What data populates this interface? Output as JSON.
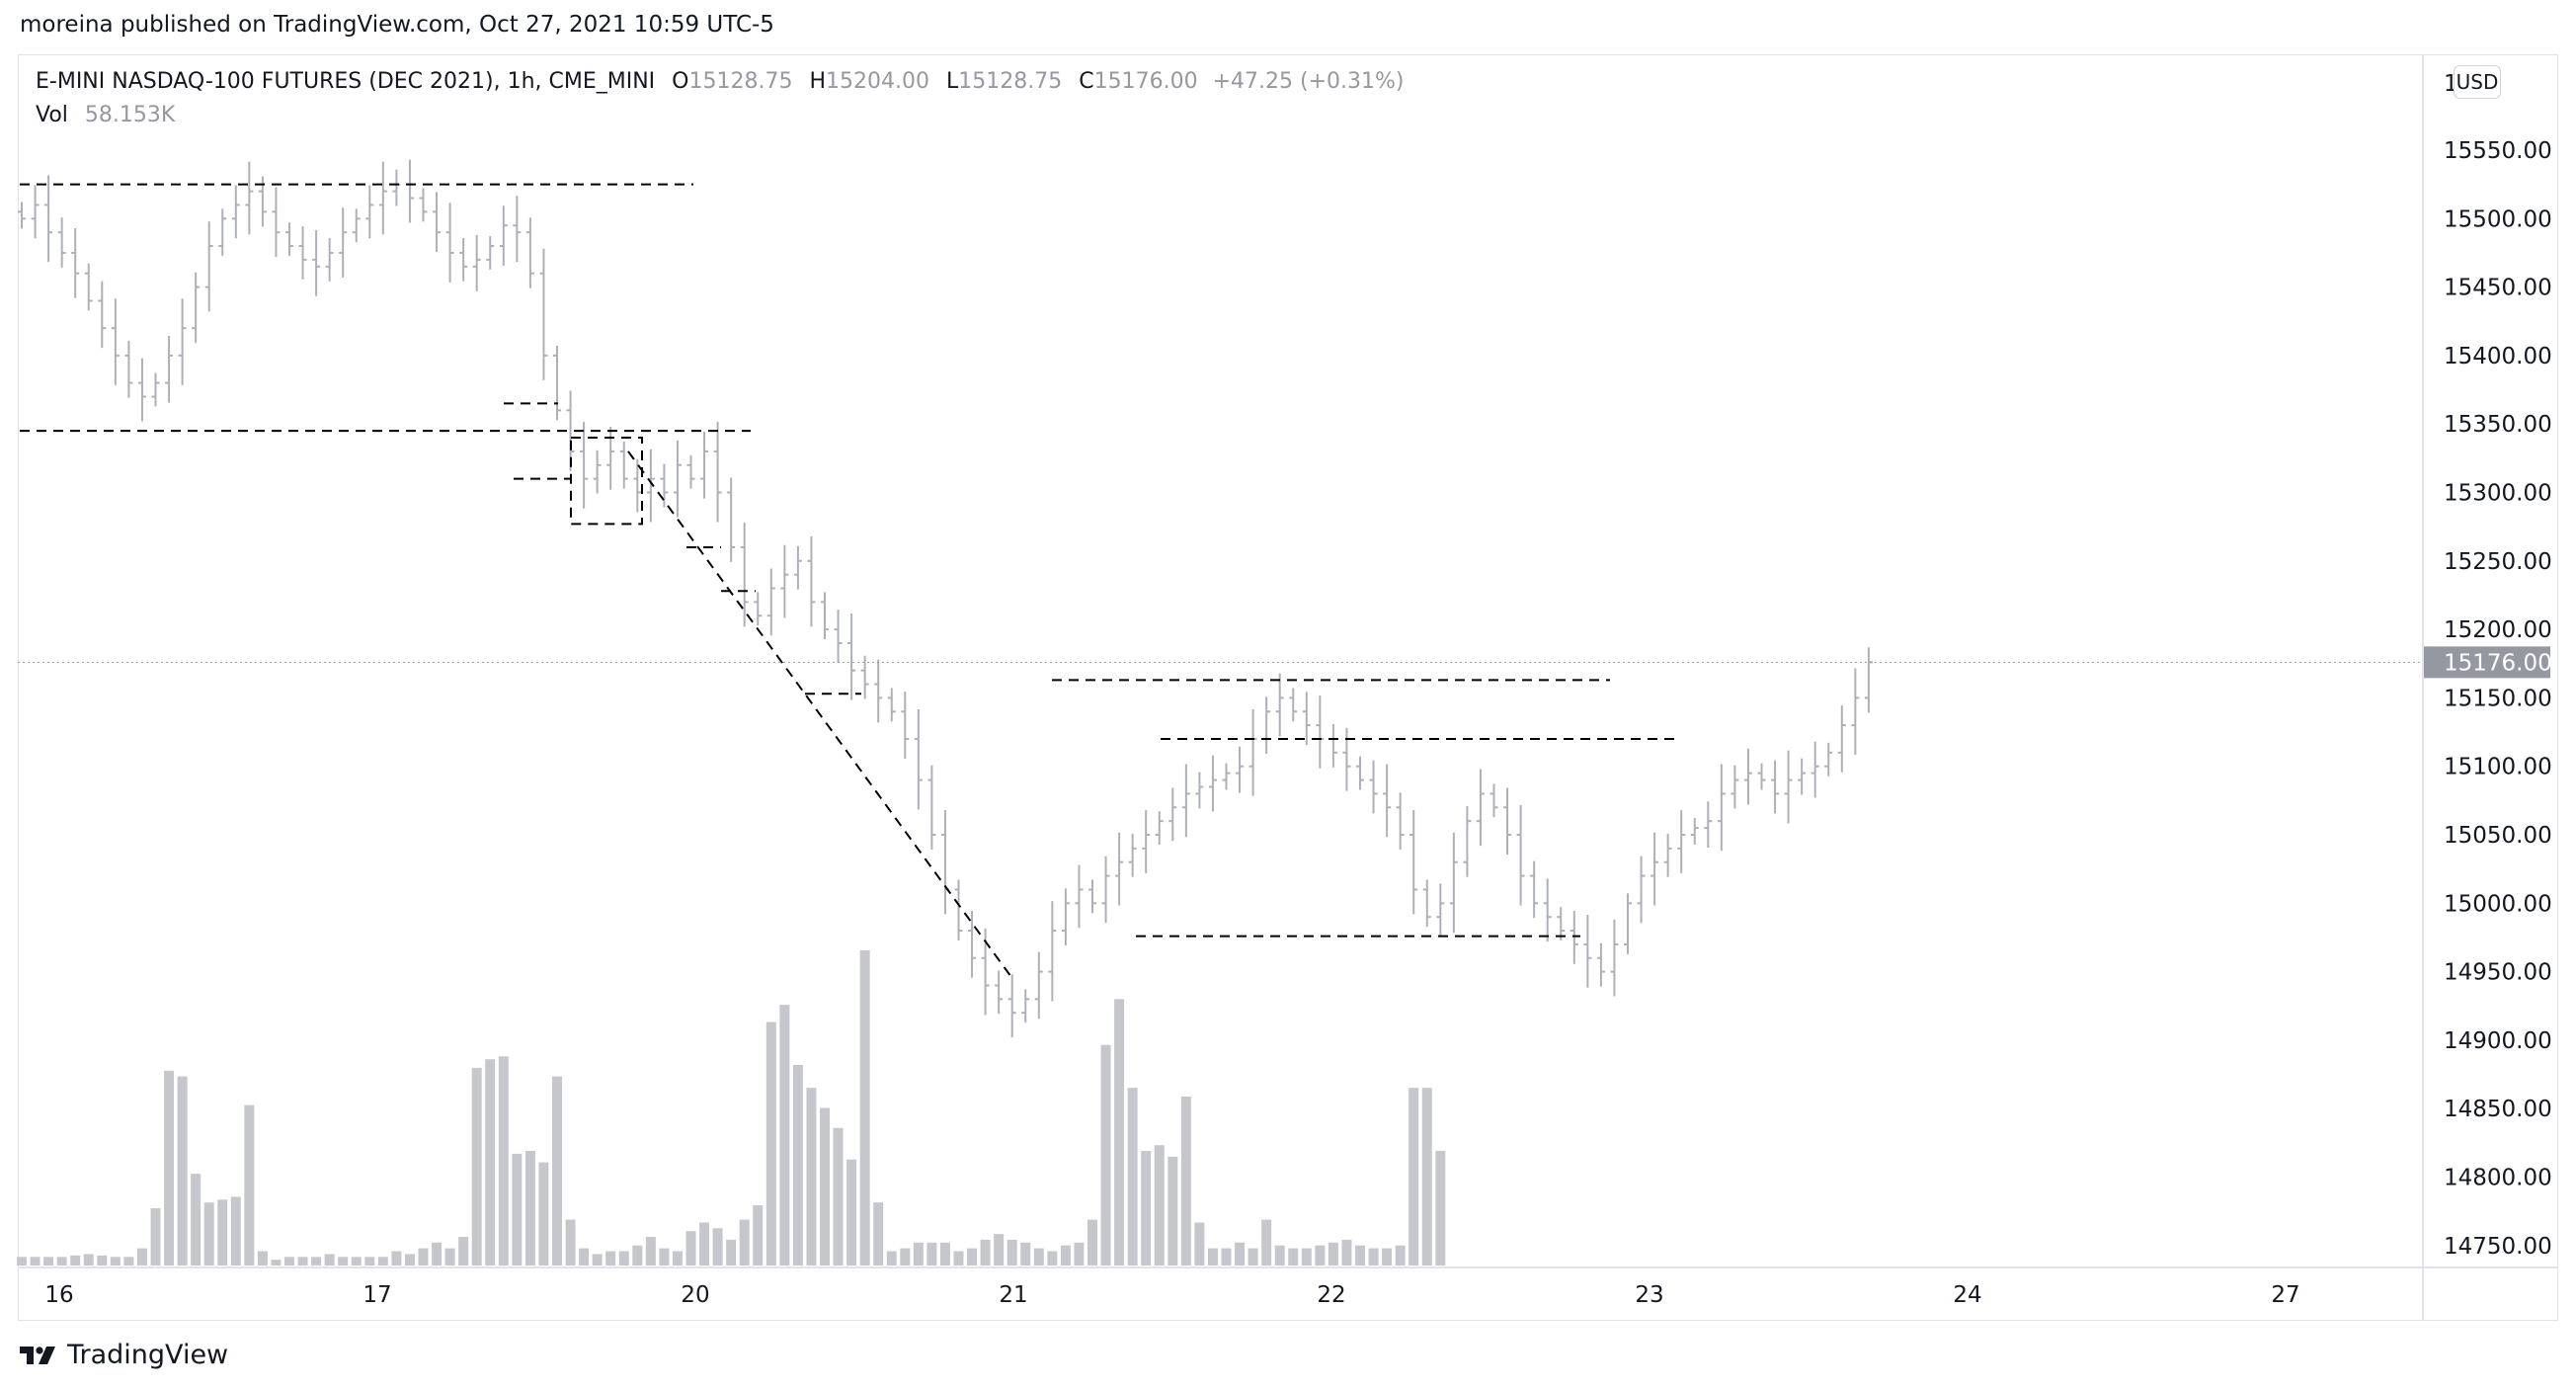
{
  "header": {
    "publisher_line": "moreina published on TradingView.com, Oct 27, 2021 10:59 UTC-5"
  },
  "legend": {
    "symbol": "E-MINI NASDAQ-100 FUTURES (DEC 2021), 1h, CME_MINI",
    "o_label": "O",
    "o_value": "15128.75",
    "h_label": "H",
    "h_value": "15204.00",
    "l_label": "L",
    "l_value": "15128.75",
    "c_label": "C",
    "c_value": "15176.00",
    "change": "+47.25 (+0.31%)",
    "vol_label": "Vol",
    "vol_value": "58.153K"
  },
  "currency_badge": "USD",
  "footer": {
    "brand": "TradingView"
  },
  "colors": {
    "bars": "#aeb0b8",
    "volume": "#c5c7cc",
    "price_tag": "#9598a1",
    "drawings": "#000000"
  },
  "chart_data": {
    "type": "ohlc",
    "interval": "1h",
    "y_axis": {
      "ticks": [
        "15550.00",
        "15500.00",
        "15450.00",
        "15400.00",
        "15350.00",
        "15300.00",
        "15250.00",
        "15200.00",
        "15150.00",
        "15100.00",
        "15050.00",
        "15000.00",
        "14950.00",
        "14900.00",
        "14850.00",
        "14800.00",
        "14750.00"
      ],
      "ylim": [
        14735,
        15605
      ],
      "position": "right",
      "partial_top_tick": "15"
    },
    "x_axis": {
      "ticks": [
        "16",
        "17",
        "20",
        "21",
        "22",
        "23",
        "24",
        "27"
      ]
    },
    "last_price": 15176.0,
    "last_price_label": "15176.00",
    "grid": false,
    "series": [
      {
        "name": "price",
        "style": "ohlc-bars",
        "segments": [
          {
            "o": 15495,
            "levels": [
              15500,
              15510,
              15490,
              15475,
              15460,
              15440,
              15420,
              15400,
              15380,
              15370,
              15380,
              15400,
              15420,
              15450,
              15480,
              15500,
              15510,
              15520,
              15505,
              15490,
              15480,
              15470,
              15465,
              15475,
              15490,
              15500,
              15510,
              15520,
              15525,
              15515,
              15505,
              15490,
              15475,
              15465,
              15470,
              15480,
              15495,
              15490,
              15460,
              15400,
              15360,
              15330,
              15310,
              15320,
              15330,
              15310,
              15300,
              15310,
              15300,
              15320,
              15310,
              15330,
              15300,
              15260,
              15220,
              15210,
              15230,
              15240,
              15250,
              15220,
              15200,
              15190,
              15170,
              15160,
              15150,
              15140,
              15120,
              15090,
              15050,
              15010,
              14980,
              14960,
              14940,
              14930,
              14920,
              14930,
              14950,
              14980,
              15000,
              15010,
              15000,
              15020,
              15030,
              15040,
              15050,
              15060,
              15070,
              15080,
              15085,
              15090,
              15095,
              15100,
              15120,
              15140,
              15150,
              15140,
              15130,
              15120,
              15110,
              15100,
              15090,
              15080,
              15070,
              15050,
              15010,
              14990,
              15000,
              15030,
              15060,
              15080,
              15070,
              15050,
              15020,
              15000,
              14990,
              14980,
              14970,
              14960,
              14950,
              14970,
              15000,
              15020,
              15030,
              15040,
              15050,
              15055,
              15060,
              15080,
              15090,
              15095,
              15090,
              15080,
              15090,
              15095,
              15100,
              15110,
              15130,
              15150,
              15176
            ]
          }
        ]
      },
      {
        "name": "volume",
        "style": "columns",
        "values": [
          0.3,
          0.3,
          0.3,
          0.3,
          0.35,
          0.4,
          0.35,
          0.3,
          0.3,
          0.6,
          2.0,
          6.8,
          6.6,
          3.2,
          2.2,
          2.3,
          2.4,
          5.6,
          0.5,
          0.2,
          0.3,
          0.3,
          0.3,
          0.4,
          0.3,
          0.3,
          0.3,
          0.3,
          0.5,
          0.4,
          0.6,
          0.8,
          0.6,
          1.0,
          6.9,
          7.2,
          7.3,
          3.9,
          4.0,
          3.6,
          6.6,
          1.6,
          0.6,
          0.4,
          0.5,
          0.5,
          0.7,
          1.0,
          0.6,
          0.5,
          1.2,
          1.5,
          1.3,
          0.9,
          1.6,
          2.1,
          8.5,
          9.1,
          7.0,
          6.2,
          5.5,
          4.8,
          3.7,
          11.0,
          2.2,
          0.5,
          0.6,
          0.8,
          0.8,
          0.8,
          0.5,
          0.6,
          0.9,
          1.1,
          0.9,
          0.8,
          0.6,
          0.5,
          0.7,
          0.8,
          1.6,
          7.7,
          9.3,
          6.2,
          4.0,
          4.2,
          3.8,
          5.9,
          1.5,
          0.6,
          0.6,
          0.8,
          0.6,
          1.6,
          0.7,
          0.6,
          0.6,
          0.7,
          0.8,
          0.9,
          0.7,
          0.6,
          0.6,
          0.7,
          6.2,
          6.2,
          4.0
        ]
      }
    ],
    "drawings": [
      {
        "type": "horizontal-dashed",
        "price": 15525,
        "from": "16 00:00",
        "to": "17 20:00"
      },
      {
        "type": "horizontal-dashed",
        "price": 15345,
        "from": "16 00:00",
        "to": "20 02:00"
      },
      {
        "type": "rectangle-dashed",
        "price_top": 15340,
        "price_bottom": 15277
      },
      {
        "type": "horizontal-dashed",
        "price": 15163,
        "from": "21 02:00",
        "to": "22 end"
      },
      {
        "type": "horizontal-dashed",
        "price": 15120,
        "from": "21 10:00",
        "to": "23 01:00"
      },
      {
        "type": "horizontal-dashed",
        "price": 14976,
        "from": "21 10:00",
        "to": "22 end"
      },
      {
        "type": "trendline-dashed",
        "from_price": 15330,
        "to_price": 14945
      }
    ]
  }
}
